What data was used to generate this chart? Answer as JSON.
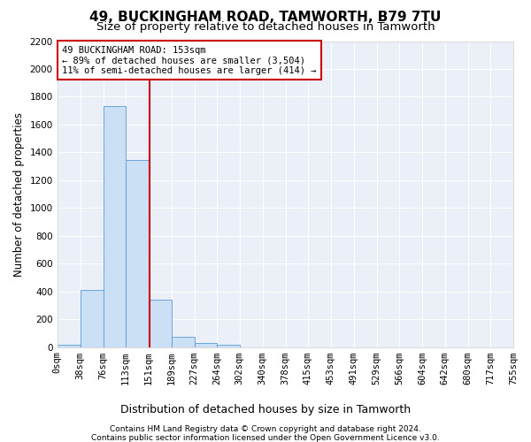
{
  "title": "49, BUCKINGHAM ROAD, TAMWORTH, B79 7TU",
  "subtitle": "Size of property relative to detached houses in Tamworth",
  "xlabel": "Distribution of detached houses by size in Tamworth",
  "ylabel": "Number of detached properties",
  "footnote1": "Contains HM Land Registry data © Crown copyright and database right 2024.",
  "footnote2": "Contains public sector information licensed under the Open Government Licence v3.0.",
  "bin_edges": [
    0,
    38,
    76,
    113,
    151,
    189,
    227,
    264,
    302,
    340,
    378,
    415,
    453,
    491,
    529,
    566,
    604,
    642,
    680,
    717,
    755
  ],
  "bin_counts": [
    15,
    410,
    1730,
    1345,
    340,
    75,
    30,
    15,
    0,
    0,
    0,
    0,
    0,
    0,
    0,
    0,
    0,
    0,
    0,
    0
  ],
  "bar_color": "#cce0f5",
  "bar_edge_color": "#5b9bd5",
  "property_line_x": 153,
  "property_line_color": "#cc0000",
  "annotation_text": "49 BUCKINGHAM ROAD: 153sqm\n← 89% of detached houses are smaller (3,504)\n11% of semi-detached houses are larger (414) →",
  "annotation_box_color": "white",
  "annotation_box_edge_color": "#cc0000",
  "ylim_max": 2200,
  "yticks": [
    0,
    200,
    400,
    600,
    800,
    1000,
    1200,
    1400,
    1600,
    1800,
    2000,
    2200
  ],
  "bg_color": "#eaeff8",
  "grid_color": "white",
  "title_fontsize": 11,
  "subtitle_fontsize": 9.5,
  "ylabel_fontsize": 8.5,
  "xlabel_fontsize": 9,
  "tick_fontsize": 7.5,
  "footnote_fontsize": 6.5
}
